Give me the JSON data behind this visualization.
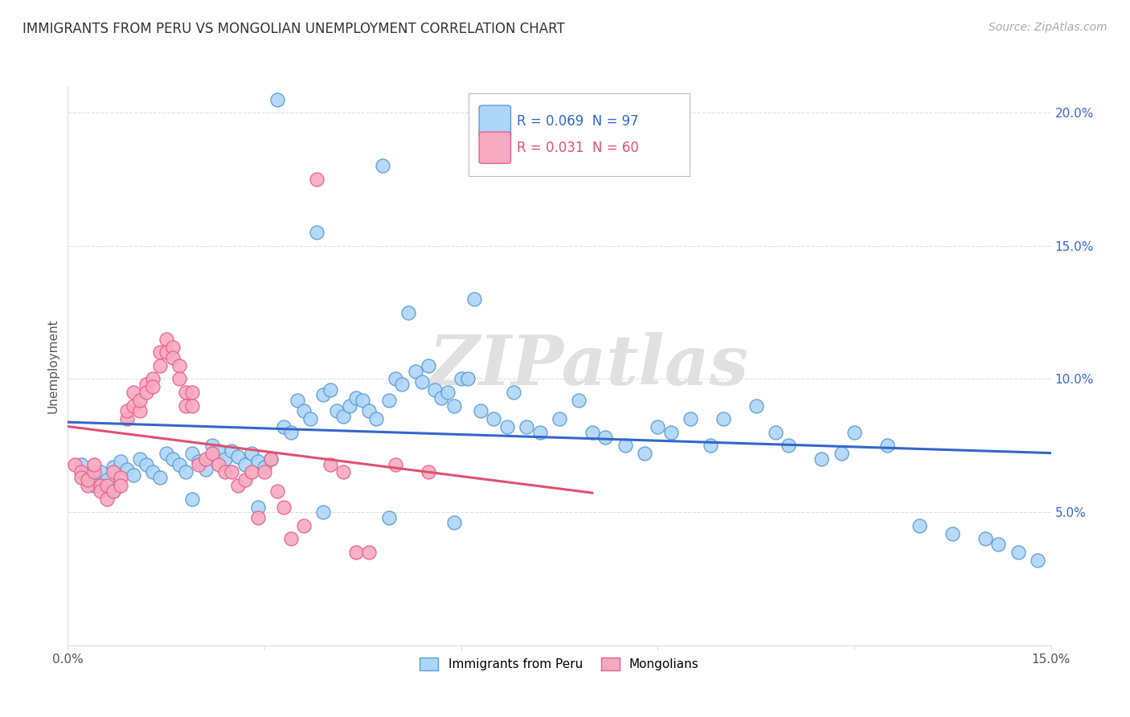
{
  "title": "IMMIGRANTS FROM PERU VS MONGOLIAN UNEMPLOYMENT CORRELATION CHART",
  "source": "Source: ZipAtlas.com",
  "ylabel": "Unemployment",
  "x_min": 0.0,
  "x_max": 0.15,
  "y_min": 0.0,
  "y_max": 0.21,
  "blue_R": "0.069",
  "blue_N": "97",
  "pink_R": "0.031",
  "pink_N": "60",
  "blue_color": "#ADD5F7",
  "pink_color": "#F7AABF",
  "blue_edge_color": "#5B9BD5",
  "pink_edge_color": "#E86090",
  "blue_line_color": "#3366CC",
  "pink_line_color": "#E05070",
  "watermark": "ZIPatlas",
  "legend_label_blue": "Immigrants from Peru",
  "legend_label_pink": "Mongolians",
  "blue_scatter_x": [
    0.032,
    0.048,
    0.038,
    0.062,
    0.052,
    0.002,
    0.003,
    0.004,
    0.005,
    0.006,
    0.007,
    0.008,
    0.009,
    0.01,
    0.011,
    0.012,
    0.013,
    0.014,
    0.015,
    0.016,
    0.017,
    0.018,
    0.019,
    0.02,
    0.021,
    0.022,
    0.023,
    0.024,
    0.025,
    0.026,
    0.027,
    0.028,
    0.029,
    0.03,
    0.031,
    0.033,
    0.034,
    0.035,
    0.036,
    0.037,
    0.039,
    0.04,
    0.041,
    0.042,
    0.043,
    0.044,
    0.045,
    0.046,
    0.047,
    0.049,
    0.05,
    0.051,
    0.053,
    0.054,
    0.055,
    0.056,
    0.057,
    0.058,
    0.059,
    0.06,
    0.061,
    0.063,
    0.065,
    0.067,
    0.068,
    0.07,
    0.072,
    0.075,
    0.078,
    0.08,
    0.082,
    0.085,
    0.088,
    0.09,
    0.092,
    0.095,
    0.098,
    0.1,
    0.105,
    0.108,
    0.11,
    0.115,
    0.118,
    0.12,
    0.125,
    0.13,
    0.135,
    0.14,
    0.142,
    0.145,
    0.148,
    0.007,
    0.019,
    0.029,
    0.039,
    0.049,
    0.059
  ],
  "blue_scatter_y": [
    0.205,
    0.18,
    0.155,
    0.13,
    0.125,
    0.068,
    0.063,
    0.06,
    0.065,
    0.062,
    0.067,
    0.069,
    0.066,
    0.064,
    0.07,
    0.068,
    0.065,
    0.063,
    0.072,
    0.07,
    0.068,
    0.065,
    0.072,
    0.069,
    0.066,
    0.075,
    0.073,
    0.07,
    0.073,
    0.071,
    0.068,
    0.072,
    0.069,
    0.067,
    0.07,
    0.082,
    0.08,
    0.092,
    0.088,
    0.085,
    0.094,
    0.096,
    0.088,
    0.086,
    0.09,
    0.093,
    0.092,
    0.088,
    0.085,
    0.092,
    0.1,
    0.098,
    0.103,
    0.099,
    0.105,
    0.096,
    0.093,
    0.095,
    0.09,
    0.1,
    0.1,
    0.088,
    0.085,
    0.082,
    0.095,
    0.082,
    0.08,
    0.085,
    0.092,
    0.08,
    0.078,
    0.075,
    0.072,
    0.082,
    0.08,
    0.085,
    0.075,
    0.085,
    0.09,
    0.08,
    0.075,
    0.07,
    0.072,
    0.08,
    0.075,
    0.045,
    0.042,
    0.04,
    0.038,
    0.035,
    0.032,
    0.058,
    0.055,
    0.052,
    0.05,
    0.048,
    0.046
  ],
  "pink_scatter_x": [
    0.001,
    0.002,
    0.002,
    0.003,
    0.003,
    0.004,
    0.004,
    0.005,
    0.005,
    0.006,
    0.006,
    0.007,
    0.007,
    0.008,
    0.008,
    0.009,
    0.009,
    0.01,
    0.01,
    0.011,
    0.011,
    0.012,
    0.012,
    0.013,
    0.013,
    0.014,
    0.014,
    0.015,
    0.015,
    0.016,
    0.016,
    0.017,
    0.017,
    0.018,
    0.018,
    0.019,
    0.019,
    0.02,
    0.021,
    0.022,
    0.023,
    0.024,
    0.025,
    0.026,
    0.027,
    0.028,
    0.029,
    0.03,
    0.031,
    0.032,
    0.033,
    0.034,
    0.036,
    0.038,
    0.04,
    0.042,
    0.044,
    0.046,
    0.05,
    0.055
  ],
  "pink_scatter_y": [
    0.068,
    0.065,
    0.063,
    0.06,
    0.062,
    0.065,
    0.068,
    0.06,
    0.058,
    0.055,
    0.06,
    0.058,
    0.065,
    0.063,
    0.06,
    0.085,
    0.088,
    0.09,
    0.095,
    0.088,
    0.092,
    0.098,
    0.095,
    0.1,
    0.097,
    0.11,
    0.105,
    0.115,
    0.11,
    0.112,
    0.108,
    0.105,
    0.1,
    0.095,
    0.09,
    0.095,
    0.09,
    0.068,
    0.07,
    0.072,
    0.068,
    0.065,
    0.065,
    0.06,
    0.062,
    0.065,
    0.048,
    0.065,
    0.07,
    0.058,
    0.052,
    0.04,
    0.045,
    0.175,
    0.068,
    0.065,
    0.035,
    0.035,
    0.068,
    0.065
  ]
}
